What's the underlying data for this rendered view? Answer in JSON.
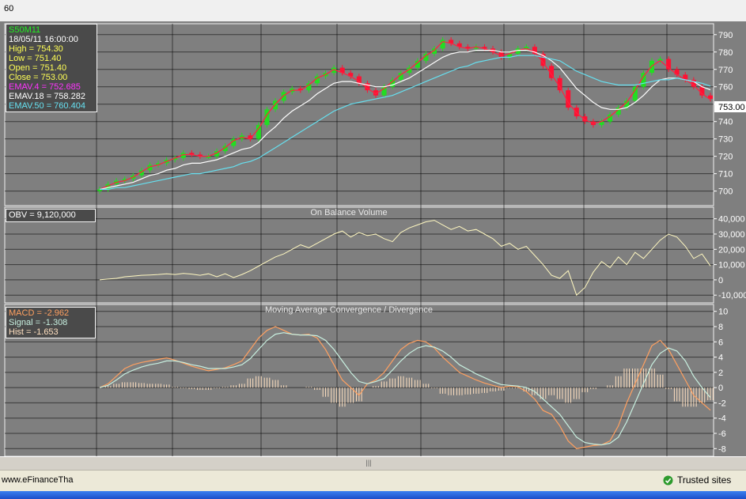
{
  "window": {
    "period": "60",
    "status_url": "www.eFinanceTha",
    "trusted_label": "Trusted sites",
    "scroll_grip": "|||"
  },
  "price_panel": {
    "symbol": "S50M11",
    "datetime": "18/05/11 16:00:00",
    "high": "High  = 754.30",
    "low": "Low  = 751.40",
    "open": "Open = 751.40",
    "close": "Close = 753.00",
    "ema4": "EMAV.4 = 752.685",
    "ema18": "EMAV.18 = 758.282",
    "ema50": "EMAV.50 = 760.404",
    "last_price": "753.00"
  },
  "obv_panel": {
    "label": "OBV = 9,120,000",
    "title": "On Balance Volume"
  },
  "macd_panel": {
    "title": "Moving Average Convergence / Divergence",
    "macd": "MACD = -2.962",
    "signal": "Signal = -1.308",
    "hist": "Hist = -1.653"
  },
  "colors": {
    "background": "#7f7f7f",
    "up_candle": "#22dd22",
    "down_candle": "#ff1133",
    "ema4": "#ff2040",
    "ema18": "#ffffff",
    "ema50": "#66e0f0",
    "obv": "#fff8c0",
    "macd": "#ffa060",
    "signal": "#c8f0e0",
    "hist": "#ffe0c0"
  },
  "chart_data": [
    {
      "type": "line",
      "panel": "price",
      "title": "",
      "y_ticks": [
        700,
        710,
        720,
        730,
        740,
        750,
        760,
        770,
        780,
        790
      ],
      "ylim": [
        693,
        794
      ],
      "grid": true,
      "last_value": 753.0,
      "series": [
        {
          "name": "S50M11",
          "kind": "close",
          "values": [
            701,
            704,
            706,
            707,
            709,
            712,
            715,
            716,
            718,
            719,
            722,
            721,
            720,
            720,
            723,
            726,
            730,
            732,
            730,
            738,
            747,
            752,
            757,
            759,
            758,
            762,
            766,
            768,
            771,
            768,
            766,
            762,
            758,
            755,
            760,
            764,
            768,
            771,
            775,
            779,
            782,
            787,
            785,
            783,
            782,
            783,
            782,
            780,
            777,
            779,
            782,
            783,
            779,
            772,
            765,
            758,
            748,
            743,
            740,
            738,
            740,
            744,
            748,
            752,
            760,
            768,
            775,
            776,
            770,
            767,
            764,
            760,
            755,
            753
          ]
        },
        {
          "name": "EMAV.4",
          "kind": "ema4",
          "values": [
            701,
            703,
            705,
            706,
            708,
            711,
            714,
            715,
            717,
            719,
            721,
            721,
            720,
            720,
            722,
            725,
            729,
            731,
            730,
            736,
            744,
            750,
            755,
            758,
            758,
            761,
            765,
            767,
            770,
            768,
            766,
            763,
            759,
            756,
            759,
            763,
            767,
            770,
            774,
            778,
            781,
            786,
            785,
            783,
            782,
            783,
            782,
            780,
            778,
            779,
            781,
            782,
            780,
            774,
            767,
            760,
            751,
            745,
            741,
            739,
            740,
            743,
            747,
            751,
            758,
            766,
            772,
            775,
            771,
            767,
            764,
            761,
            756,
            752.7
          ]
        },
        {
          "name": "EMAV.18",
          "kind": "ema18",
          "values": [
            701,
            702,
            703,
            704,
            705,
            707,
            709,
            710,
            712,
            713,
            715,
            716,
            716,
            717,
            718,
            720,
            722,
            724,
            725,
            728,
            733,
            737,
            742,
            746,
            749,
            752,
            756,
            759,
            762,
            763,
            763,
            762,
            761,
            760,
            760,
            761,
            763,
            765,
            768,
            771,
            774,
            777,
            779,
            780,
            780,
            781,
            781,
            781,
            780,
            780,
            781,
            781,
            780,
            778,
            775,
            771,
            765,
            759,
            755,
            751,
            748,
            747,
            747,
            748,
            751,
            755,
            760,
            764,
            765,
            765,
            764,
            763,
            760,
            758.3
          ]
        },
        {
          "name": "EMAV.50",
          "kind": "ema50",
          "values": [
            701,
            701,
            702,
            702,
            703,
            704,
            705,
            706,
            707,
            708,
            709,
            710,
            710,
            711,
            712,
            713,
            714,
            716,
            717,
            719,
            722,
            725,
            728,
            731,
            734,
            737,
            740,
            743,
            746,
            748,
            750,
            751,
            752,
            753,
            754,
            755,
            757,
            759,
            761,
            763,
            765,
            767,
            769,
            771,
            772,
            774,
            775,
            776,
            777,
            777,
            778,
            778,
            778,
            777,
            776,
            775,
            772,
            769,
            767,
            765,
            763,
            762,
            761,
            761,
            761,
            762,
            763,
            764,
            764,
            765,
            764,
            763,
            762,
            760.4
          ]
        }
      ]
    },
    {
      "type": "line",
      "panel": "obv",
      "title": "On Balance Volume",
      "y_ticks": [
        -10000,
        0,
        10000,
        20000,
        30000,
        40000
      ],
      "y_tick_labels": [
        "-10,000",
        "0",
        "10,000",
        "20,000",
        "30,000",
        "40,000"
      ],
      "ylim": [
        -13000,
        45000
      ],
      "series": [
        {
          "name": "OBV",
          "values": [
            0,
            500,
            1000,
            2000,
            2500,
            3000,
            3200,
            3500,
            4000,
            3500,
            4200,
            3800,
            3000,
            4000,
            2000,
            4000,
            1500,
            3500,
            6000,
            9000,
            12000,
            15000,
            17000,
            20000,
            23000,
            21000,
            24000,
            27000,
            30000,
            32000,
            28000,
            31000,
            29000,
            30000,
            27000,
            25000,
            31000,
            34000,
            36000,
            38000,
            39000,
            36000,
            33000,
            35000,
            32000,
            33000,
            30000,
            27000,
            22000,
            24000,
            20000,
            22000,
            16000,
            10000,
            3000,
            1000,
            6000,
            -10000,
            -5000,
            5000,
            12000,
            8000,
            15000,
            10000,
            18000,
            14000,
            20000,
            26000,
            30000,
            28000,
            22000,
            14000,
            17000,
            9120
          ]
        }
      ]
    },
    {
      "type": "line",
      "panel": "macd",
      "title": "Moving Average Convergence / Divergence",
      "y_ticks": [
        -8,
        -6,
        -4,
        -2,
        0,
        2,
        4,
        6,
        8,
        10
      ],
      "ylim": [
        -8.8,
        10.8
      ],
      "series": [
        {
          "name": "MACD",
          "values": [
            0,
            0.5,
            1.5,
            2.5,
            3,
            3.3,
            3.5,
            3.7,
            3.9,
            3.6,
            3.2,
            2.8,
            2.5,
            2.2,
            2.4,
            2.6,
            3,
            3.5,
            5,
            6.5,
            7.5,
            8,
            7.5,
            7,
            6.9,
            7,
            6.5,
            5,
            3,
            1,
            0,
            -1,
            0.5,
            1,
            2,
            3.5,
            5,
            5.8,
            6.2,
            6,
            5.2,
            4,
            3,
            2,
            1.5,
            1,
            0.6,
            0.3,
            0,
            0.2,
            0.1,
            -0.5,
            -1.5,
            -3,
            -3.5,
            -5,
            -7,
            -8,
            -7.8,
            -7.6,
            -7.5,
            -7,
            -5,
            -2,
            0.5,
            3,
            5.5,
            6.2,
            5,
            3,
            1,
            -1,
            -2,
            -2.962
          ]
        },
        {
          "name": "Signal",
          "values": [
            0,
            0.3,
            1,
            1.8,
            2.3,
            2.7,
            3,
            3.2,
            3.5,
            3.5,
            3.3,
            3,
            2.8,
            2.5,
            2.5,
            2.5,
            2.7,
            3,
            3.8,
            5,
            6.2,
            7,
            7.2,
            7,
            6.9,
            6.9,
            6.8,
            6.2,
            5,
            3.5,
            2,
            0.8,
            0.5,
            0.8,
            1.2,
            2.3,
            3.5,
            4.5,
            5.2,
            5.5,
            5.3,
            4.8,
            4,
            3,
            2.4,
            1.8,
            1.3,
            0.8,
            0.4,
            0.3,
            0.2,
            0,
            -0.5,
            -1.5,
            -2.5,
            -3.5,
            -5,
            -6.5,
            -7.2,
            -7.4,
            -7.5,
            -7.3,
            -6.5,
            -4.5,
            -2,
            0.5,
            3,
            4.5,
            5.2,
            4.8,
            3.5,
            1.5,
            0,
            -1.308
          ]
        },
        {
          "name": "Hist",
          "kind": "hist",
          "values": [
            0,
            0.2,
            0.5,
            0.7,
            0.7,
            0.6,
            0.5,
            0.5,
            0.4,
            0.1,
            -0.1,
            -0.2,
            -0.3,
            -0.3,
            -0.1,
            0.1,
            0.3,
            0.5,
            1.2,
            1.5,
            1.3,
            1,
            0.3,
            0,
            0,
            0.1,
            -0.3,
            -1.2,
            -2,
            -2.5,
            -2,
            -1.8,
            0,
            0.2,
            0.8,
            1.2,
            1.5,
            1.3,
            1,
            0.5,
            -0.1,
            -0.8,
            -1,
            -1,
            -0.9,
            -0.8,
            -0.7,
            -0.5,
            -0.4,
            -0.1,
            -0.1,
            -0.5,
            -1,
            -1.5,
            -1,
            -1.5,
            -2,
            -1.5,
            -0.6,
            -0.2,
            0,
            0.3,
            1.5,
            2.5,
            2.5,
            2.5,
            2.5,
            1.7,
            -0.2,
            -1.8,
            -2.5,
            -2.5,
            -2,
            -1.653
          ]
        }
      ]
    }
  ]
}
